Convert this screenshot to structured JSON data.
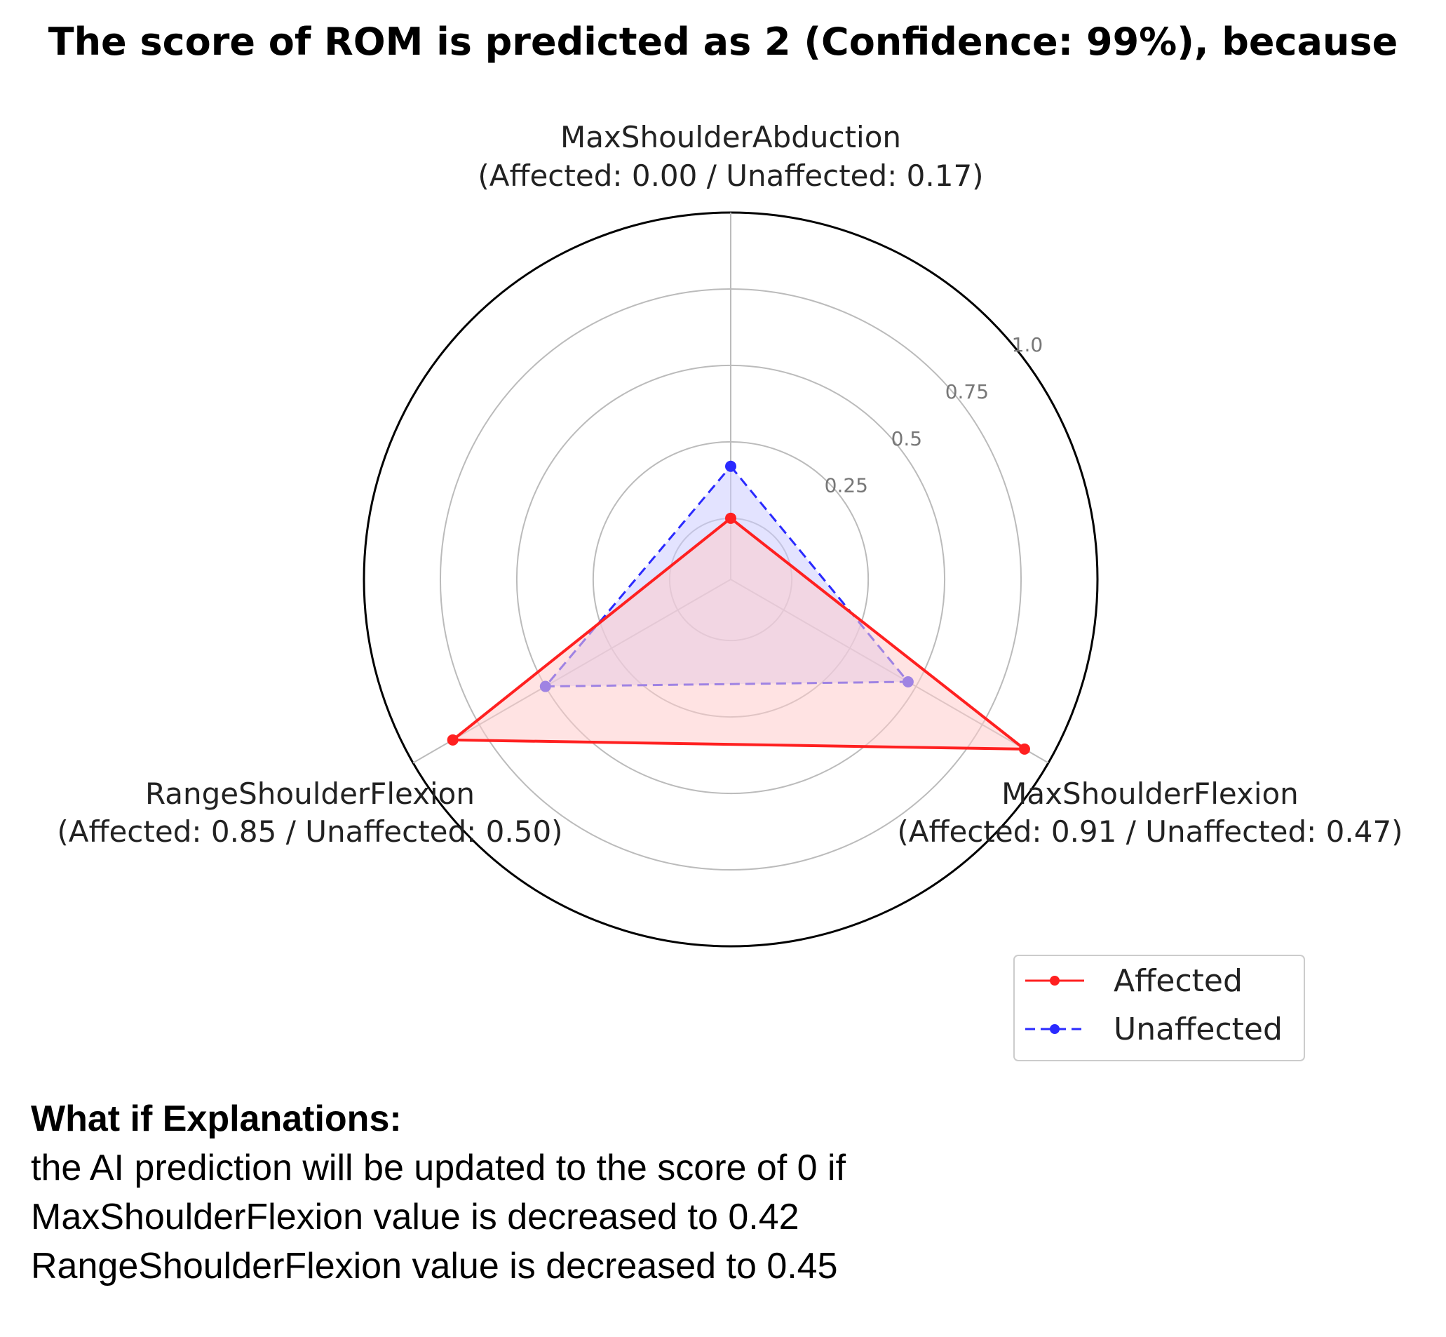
{
  "chart_data": {
    "type": "radar",
    "title": "The score of ROM is predicted as 2 (Confidence: 99%), because",
    "axes": [
      {
        "name": "MaxShoulderAbduction",
        "detail": "(Affected: 0.00 / Unaffected: 0.17)"
      },
      {
        "name": "MaxShoulderFlexion",
        "detail": "(Affected: 0.91 / Unaffected: 0.47)"
      },
      {
        "name": "RangeShoulderFlexion",
        "detail": "(Affected: 0.85 / Unaffected: 0.50)"
      }
    ],
    "series": [
      {
        "name": "Affected",
        "values": [
          0.0,
          0.91,
          0.85
        ],
        "color": "#ff2020",
        "fill": "#ffcccc",
        "dash": "solid"
      },
      {
        "name": "Unaffected",
        "values": [
          0.17,
          0.47,
          0.5
        ],
        "color": "#2a2aff",
        "fill": "#ccccff",
        "dash": "dashed"
      }
    ],
    "r_ticks": [
      "0.25",
      "0.5",
      "0.75",
      "1.0"
    ],
    "r_tick_values": [
      0.25,
      0.5,
      0.75,
      1.0
    ],
    "r_range": [
      -0.2,
      1.0
    ],
    "legend_position": "bottom-right"
  },
  "explanation": {
    "heading": "What if Explanations:",
    "lines": [
      "the AI prediction will be updated to the score of 0 if",
      "MaxShoulderFlexion value is decreased to 0.42",
      "RangeShoulderFlexion value is decreased to 0.45"
    ]
  }
}
